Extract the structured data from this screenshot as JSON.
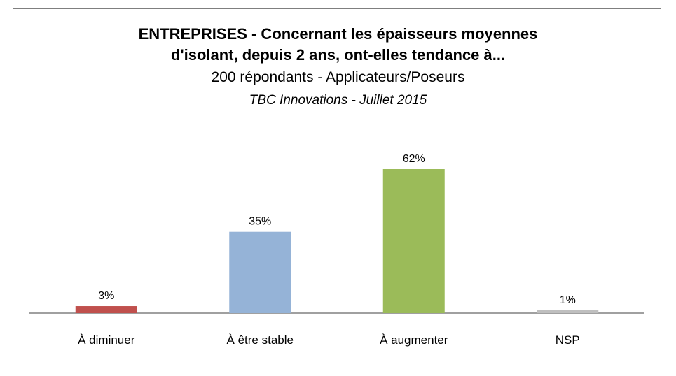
{
  "chart_data": {
    "type": "bar",
    "title": "ENTREPRISES - Concernant les épaisseurs moyennes",
    "title_line2": "d'isolant, depuis 2 ans, ont-elles tendance à...",
    "subtitle": "200 répondants - Applicateurs/Poseurs",
    "source": "TBC Innovations - Juillet 2015",
    "categories": [
      "À diminuer",
      "À être stable",
      "À augmenter",
      "NSP"
    ],
    "values": [
      3,
      35,
      62,
      1
    ],
    "data_labels": [
      "3%",
      "35%",
      "62%",
      "1%"
    ],
    "colors": [
      "#c0504d",
      "#95b3d7",
      "#9bbb59",
      "#bfbfbf"
    ],
    "ylim": [
      0,
      70
    ],
    "unit": "%",
    "grid": false,
    "legend": "none"
  }
}
